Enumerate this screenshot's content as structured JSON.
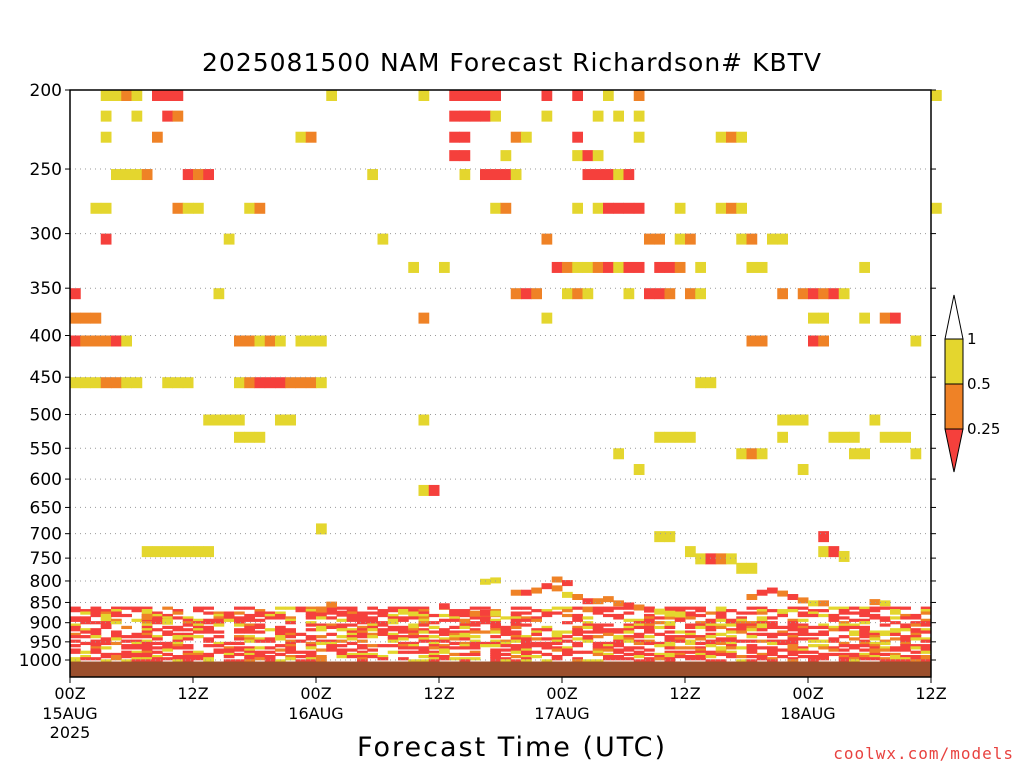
{
  "title": "2025081500 NAM Forecast Richardson# KBTV",
  "footer": {
    "credit": "coolwx.com/models"
  },
  "colors": {
    "bin_0": "#f5403c",
    "bin_1": "#ef8226",
    "bin_2": "#e4d62e",
    "ground": "#9b4f2d"
  },
  "chart_data": {
    "type": "heatmap",
    "title": "2025081500 NAM Forecast Richardson# KBTV",
    "xlabel": "Forecast Time (UTC)",
    "ylabel": "",
    "x_units": "forecast hours from 2025-08-15 00Z",
    "xlim": [
      0,
      84
    ],
    "ylim": [
      1000,
      200
    ],
    "y_scale": "log-pressure (hPa)",
    "grid": "horizontal dotted lines at labeled pressure levels",
    "legend_position": "right",
    "x_ticks": [
      {
        "hour": 0,
        "label": "00Z",
        "date": "15AUG",
        "year": "2025"
      },
      {
        "hour": 12,
        "label": "12Z"
      },
      {
        "hour": 24,
        "label": "00Z",
        "date": "16AUG"
      },
      {
        "hour": 36,
        "label": "12Z"
      },
      {
        "hour": 48,
        "label": "00Z",
        "date": "17AUG"
      },
      {
        "hour": 60,
        "label": "12Z"
      },
      {
        "hour": 72,
        "label": "00Z",
        "date": "18AUG"
      },
      {
        "hour": 84,
        "label": "12Z"
      }
    ],
    "y_ticks": [
      200,
      250,
      300,
      350,
      400,
      450,
      500,
      550,
      600,
      650,
      700,
      750,
      800,
      850,
      900,
      950,
      1000
    ],
    "colorbar": {
      "labels": [
        "1",
        "0.5",
        "0.25"
      ],
      "bins": [
        {
          "range": "< 0.25",
          "color": "#f5403c"
        },
        {
          "range": "0.25 - 0.5",
          "color": "#ef8226"
        },
        {
          "range": "0.5 - 1",
          "color": "#e4d62e"
        },
        {
          "range": "> 1",
          "color": "#ffffff"
        }
      ]
    },
    "cells": [
      [
        3,
        200,
        2
      ],
      [
        4,
        200,
        2
      ],
      [
        5,
        200,
        1
      ],
      [
        6,
        200,
        2
      ],
      [
        8,
        200,
        0
      ],
      [
        9,
        200,
        0
      ],
      [
        10,
        200,
        0
      ],
      [
        3,
        212,
        2
      ],
      [
        6,
        212,
        2
      ],
      [
        9,
        212,
        0
      ],
      [
        10,
        212,
        1
      ],
      [
        25,
        200,
        2
      ],
      [
        34,
        200,
        2
      ],
      [
        37,
        200,
        0
      ],
      [
        38,
        200,
        0
      ],
      [
        39,
        200,
        0
      ],
      [
        40,
        200,
        0
      ],
      [
        41,
        200,
        0
      ],
      [
        46,
        200,
        0
      ],
      [
        49,
        200,
        0
      ],
      [
        52,
        200,
        2
      ],
      [
        55,
        200,
        1
      ],
      [
        37,
        212,
        0
      ],
      [
        38,
        212,
        0
      ],
      [
        39,
        212,
        0
      ],
      [
        40,
        212,
        0
      ],
      [
        41,
        212,
        2
      ],
      [
        46,
        212,
        2
      ],
      [
        51,
        212,
        2
      ],
      [
        53,
        212,
        2
      ],
      [
        55,
        212,
        2
      ],
      [
        84,
        200,
        2
      ],
      [
        3,
        225,
        2
      ],
      [
        8,
        225,
        1
      ],
      [
        22,
        225,
        2
      ],
      [
        23,
        225,
        1
      ],
      [
        37,
        225,
        0
      ],
      [
        38,
        225,
        0
      ],
      [
        43,
        225,
        1
      ],
      [
        44,
        225,
        2
      ],
      [
        49,
        225,
        0
      ],
      [
        55,
        225,
        2
      ],
      [
        63,
        225,
        2
      ],
      [
        64,
        225,
        1
      ],
      [
        65,
        225,
        2
      ],
      [
        37,
        237,
        0
      ],
      [
        38,
        237,
        0
      ],
      [
        42,
        237,
        2
      ],
      [
        49,
        237,
        2
      ],
      [
        50,
        237,
        0
      ],
      [
        51,
        237,
        2
      ],
      [
        4,
        250,
        2
      ],
      [
        5,
        250,
        2
      ],
      [
        6,
        250,
        2
      ],
      [
        7,
        250,
        1
      ],
      [
        11,
        250,
        0
      ],
      [
        12,
        250,
        1
      ],
      [
        13,
        250,
        0
      ],
      [
        29,
        250,
        2
      ],
      [
        38,
        250,
        2
      ],
      [
        40,
        250,
        0
      ],
      [
        41,
        250,
        0
      ],
      [
        42,
        250,
        0
      ],
      [
        43,
        250,
        2
      ],
      [
        50,
        250,
        0
      ],
      [
        51,
        250,
        0
      ],
      [
        52,
        250,
        0
      ],
      [
        53,
        250,
        2
      ],
      [
        54,
        250,
        0
      ],
      [
        2,
        275,
        2
      ],
      [
        3,
        275,
        2
      ],
      [
        10,
        275,
        1
      ],
      [
        11,
        275,
        2
      ],
      [
        12,
        275,
        2
      ],
      [
        17,
        275,
        2
      ],
      [
        18,
        275,
        1
      ],
      [
        41,
        275,
        2
      ],
      [
        42,
        275,
        1
      ],
      [
        49,
        275,
        2
      ],
      [
        51,
        275,
        2
      ],
      [
        52,
        275,
        0
      ],
      [
        53,
        275,
        0
      ],
      [
        54,
        275,
        0
      ],
      [
        55,
        275,
        0
      ],
      [
        59,
        275,
        2
      ],
      [
        63,
        275,
        2
      ],
      [
        64,
        275,
        1
      ],
      [
        65,
        275,
        2
      ],
      [
        84,
        275,
        2
      ],
      [
        3,
        300,
        0
      ],
      [
        15,
        300,
        2
      ],
      [
        30,
        300,
        2
      ],
      [
        46,
        300,
        1
      ],
      [
        56,
        300,
        1
      ],
      [
        57,
        300,
        1
      ],
      [
        59,
        300,
        2
      ],
      [
        60,
        300,
        1
      ],
      [
        65,
        300,
        2
      ],
      [
        66,
        300,
        1
      ],
      [
        68,
        300,
        2
      ],
      [
        69,
        300,
        2
      ],
      [
        47,
        325,
        0
      ],
      [
        48,
        325,
        1
      ],
      [
        49,
        325,
        2
      ],
      [
        50,
        325,
        2
      ],
      [
        51,
        325,
        1
      ],
      [
        52,
        325,
        0
      ],
      [
        53,
        325,
        2
      ],
      [
        54,
        325,
        0
      ],
      [
        55,
        325,
        0
      ],
      [
        57,
        325,
        0
      ],
      [
        58,
        325,
        0
      ],
      [
        59,
        325,
        1
      ],
      [
        61,
        325,
        2
      ],
      [
        66,
        325,
        2
      ],
      [
        67,
        325,
        2
      ],
      [
        77,
        325,
        2
      ],
      [
        33,
        325,
        2
      ],
      [
        36,
        325,
        2
      ],
      [
        0,
        350,
        0
      ],
      [
        14,
        350,
        2
      ],
      [
        43,
        350,
        1
      ],
      [
        44,
        350,
        0
      ],
      [
        45,
        350,
        1
      ],
      [
        48,
        350,
        2
      ],
      [
        49,
        350,
        1
      ],
      [
        50,
        350,
        2
      ],
      [
        54,
        350,
        2
      ],
      [
        56,
        350,
        0
      ],
      [
        57,
        350,
        0
      ],
      [
        58,
        350,
        1
      ],
      [
        60,
        350,
        1
      ],
      [
        61,
        350,
        2
      ],
      [
        69,
        350,
        1
      ],
      [
        71,
        350,
        1
      ],
      [
        72,
        350,
        0
      ],
      [
        73,
        350,
        1
      ],
      [
        74,
        350,
        0
      ],
      [
        75,
        350,
        2
      ],
      [
        0,
        375,
        1
      ],
      [
        1,
        375,
        1
      ],
      [
        2,
        375,
        1
      ],
      [
        34,
        375,
        1
      ],
      [
        46,
        375,
        2
      ],
      [
        72,
        375,
        2
      ],
      [
        73,
        375,
        2
      ],
      [
        77,
        375,
        2
      ],
      [
        79,
        375,
        1
      ],
      [
        80,
        375,
        0
      ],
      [
        0,
        400,
        0
      ],
      [
        1,
        400,
        1
      ],
      [
        2,
        400,
        1
      ],
      [
        3,
        400,
        1
      ],
      [
        4,
        400,
        0
      ],
      [
        5,
        400,
        2
      ],
      [
        16,
        400,
        1
      ],
      [
        17,
        400,
        1
      ],
      [
        18,
        400,
        2
      ],
      [
        19,
        400,
        1
      ],
      [
        20,
        400,
        2
      ],
      [
        22,
        400,
        2
      ],
      [
        23,
        400,
        2
      ],
      [
        24,
        400,
        2
      ],
      [
        66,
        400,
        1
      ],
      [
        67,
        400,
        1
      ],
      [
        72,
        400,
        0
      ],
      [
        73,
        400,
        1
      ],
      [
        82,
        400,
        2
      ],
      [
        0,
        450,
        2
      ],
      [
        1,
        450,
        2
      ],
      [
        2,
        450,
        2
      ],
      [
        3,
        450,
        1
      ],
      [
        4,
        450,
        1
      ],
      [
        5,
        450,
        2
      ],
      [
        6,
        450,
        2
      ],
      [
        9,
        450,
        2
      ],
      [
        10,
        450,
        2
      ],
      [
        11,
        450,
        2
      ],
      [
        16,
        450,
        2
      ],
      [
        17,
        450,
        1
      ],
      [
        18,
        450,
        0
      ],
      [
        19,
        450,
        0
      ],
      [
        20,
        450,
        0
      ],
      [
        21,
        450,
        1
      ],
      [
        22,
        450,
        1
      ],
      [
        23,
        450,
        1
      ],
      [
        24,
        450,
        2
      ],
      [
        61,
        450,
        2
      ],
      [
        62,
        450,
        2
      ],
      [
        13,
        500,
        2
      ],
      [
        14,
        500,
        2
      ],
      [
        15,
        500,
        2
      ],
      [
        16,
        500,
        2
      ],
      [
        20,
        500,
        2
      ],
      [
        21,
        500,
        2
      ],
      [
        34,
        500,
        2
      ],
      [
        69,
        500,
        2
      ],
      [
        70,
        500,
        2
      ],
      [
        71,
        500,
        2
      ],
      [
        78,
        500,
        2
      ],
      [
        16,
        525,
        2
      ],
      [
        17,
        525,
        2
      ],
      [
        18,
        525,
        2
      ],
      [
        57,
        525,
        2
      ],
      [
        58,
        525,
        2
      ],
      [
        59,
        525,
        2
      ],
      [
        60,
        525,
        2
      ],
      [
        69,
        525,
        2
      ],
      [
        74,
        525,
        2
      ],
      [
        75,
        525,
        2
      ],
      [
        76,
        525,
        2
      ],
      [
        79,
        525,
        2
      ],
      [
        80,
        525,
        2
      ],
      [
        81,
        525,
        2
      ],
      [
        53,
        550,
        2
      ],
      [
        65,
        550,
        2
      ],
      [
        66,
        550,
        1
      ],
      [
        67,
        550,
        2
      ],
      [
        76,
        550,
        2
      ],
      [
        77,
        550,
        2
      ],
      [
        82,
        550,
        2
      ],
      [
        55,
        575,
        2
      ],
      [
        71,
        575,
        2
      ],
      [
        34,
        610,
        2
      ],
      [
        35,
        610,
        0
      ],
      [
        24,
        680,
        2
      ],
      [
        57,
        695,
        2
      ],
      [
        58,
        695,
        2
      ],
      [
        73,
        695,
        0
      ],
      [
        7,
        725,
        2
      ],
      [
        8,
        725,
        2
      ],
      [
        9,
        725,
        2
      ],
      [
        10,
        725,
        2
      ],
      [
        11,
        725,
        2
      ],
      [
        12,
        725,
        2
      ],
      [
        13,
        725,
        2
      ],
      [
        60,
        725,
        2
      ],
      [
        73,
        725,
        2
      ],
      [
        74,
        725,
        0
      ],
      [
        61,
        740,
        2
      ],
      [
        62,
        740,
        0
      ],
      [
        63,
        740,
        1
      ],
      [
        64,
        740,
        2
      ],
      [
        65,
        760,
        2
      ],
      [
        66,
        760,
        2
      ],
      [
        75,
        735,
        2
      ]
    ],
    "low_level_pattern": "dense < 0.25 band from 850-1000 hPa throughout, with orange/yellow patches near 800-900 hPa around hours 44-48 and 66-72",
    "ground_pressure_hPa": 1010
  }
}
